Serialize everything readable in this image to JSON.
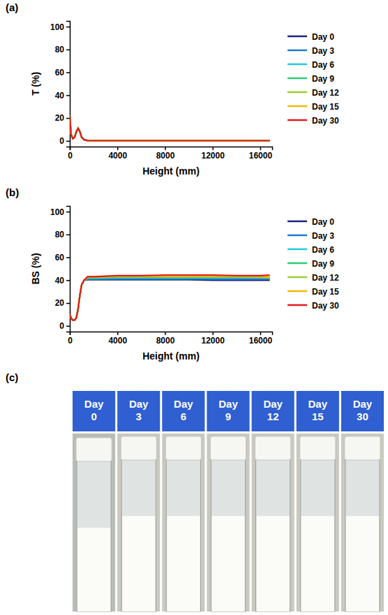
{
  "chart_data": [
    {
      "type": "line",
      "panel": "(a)",
      "x_label": "Height (mm)",
      "y_label": "T (%)",
      "x": [
        0,
        100,
        250,
        400,
        550,
        700,
        850,
        1000,
        1200,
        1500,
        2000,
        4000,
        6000,
        8000,
        10000,
        12000,
        14000,
        16000,
        16800
      ],
      "xlim": [
        0,
        17000
      ],
      "xticks": [
        0,
        4000,
        8000,
        12000,
        16000
      ],
      "ylim": [
        -5,
        105
      ],
      "yticks": [
        0,
        20,
        40,
        60,
        80,
        100
      ],
      "legend": "right",
      "grid": false,
      "series": [
        {
          "name": "Day 0",
          "color": "#1a237e",
          "values": [
            22,
            6,
            2,
            3,
            8,
            11,
            8,
            3,
            1,
            0.3,
            0.2,
            0.2,
            0.2,
            0.2,
            0.2,
            0.2,
            0.2,
            0.2,
            0.2
          ]
        },
        {
          "name": "Day 3",
          "color": "#1f78d1",
          "values": [
            22,
            6,
            2,
            3,
            8,
            11,
            8,
            3,
            1,
            0.3,
            0.2,
            0.2,
            0.2,
            0.2,
            0.2,
            0.2,
            0.2,
            0.2,
            0.2
          ]
        },
        {
          "name": "Day 6",
          "color": "#26c6da",
          "values": [
            22,
            6,
            2,
            3,
            8,
            11,
            8,
            3,
            1,
            0.3,
            0.2,
            0.2,
            0.2,
            0.2,
            0.2,
            0.2,
            0.2,
            0.2,
            0.2
          ]
        },
        {
          "name": "Day 9",
          "color": "#2ecc71",
          "values": [
            22,
            6,
            2,
            3,
            8,
            11,
            8,
            3,
            1,
            0.3,
            0.2,
            0.2,
            0.2,
            0.2,
            0.2,
            0.2,
            0.2,
            0.2,
            0.2
          ]
        },
        {
          "name": "Day 12",
          "color": "#9acd32",
          "values": [
            22,
            6,
            2,
            3,
            8,
            11,
            8,
            3,
            1,
            0.3,
            0.2,
            0.2,
            0.2,
            0.2,
            0.2,
            0.2,
            0.2,
            0.2,
            0.2
          ]
        },
        {
          "name": "Day 15",
          "color": "#f5b50a",
          "values": [
            22,
            6,
            2,
            3,
            8,
            11,
            8,
            3,
            1,
            0.3,
            0.2,
            0.2,
            0.2,
            0.2,
            0.2,
            0.2,
            0.2,
            0.2,
            0.2
          ]
        },
        {
          "name": "Day 30",
          "color": "#e31a1c",
          "values": [
            22,
            6,
            2,
            3,
            8,
            11,
            8,
            3,
            1,
            0.3,
            0.2,
            0.2,
            0.2,
            0.2,
            0.2,
            0.2,
            0.2,
            0.2,
            0.2
          ]
        }
      ]
    },
    {
      "type": "line",
      "panel": "(b)",
      "x_label": "Height (mm)",
      "y_label": "BS (%)",
      "x": [
        0,
        100,
        250,
        400,
        550,
        700,
        850,
        1000,
        1200,
        1500,
        2000,
        4000,
        6000,
        8000,
        10000,
        12000,
        14000,
        16000,
        16800
      ],
      "xlim": [
        0,
        17000
      ],
      "xticks": [
        0,
        4000,
        8000,
        12000,
        16000
      ],
      "ylim": [
        -5,
        105
      ],
      "yticks": [
        0,
        20,
        40,
        60,
        80,
        100
      ],
      "legend": "right",
      "grid": false,
      "series": [
        {
          "name": "Day 0",
          "color": "#1a237e",
          "values": [
            10,
            7,
            5,
            5,
            7,
            15,
            27,
            36,
            40,
            40.5,
            40.5,
            40.5,
            40.5,
            40.5,
            40.5,
            40,
            40,
            40,
            40
          ]
        },
        {
          "name": "Day 3",
          "color": "#1f78d1",
          "values": [
            10,
            7,
            5,
            5,
            7,
            15,
            27,
            36,
            40,
            41,
            41,
            41,
            41,
            41,
            41,
            41,
            41,
            41,
            41
          ]
        },
        {
          "name": "Day 6",
          "color": "#26c6da",
          "values": [
            10,
            7,
            5,
            5,
            7,
            15,
            27,
            36,
            40,
            41.5,
            41.5,
            42,
            42,
            42,
            42,
            42,
            42,
            42,
            42
          ]
        },
        {
          "name": "Day 9",
          "color": "#2ecc71",
          "values": [
            10,
            7,
            5,
            5,
            7,
            15,
            27,
            36,
            40,
            42,
            42,
            42.5,
            42.5,
            42.5,
            42.5,
            42.5,
            42.5,
            42.5,
            42.5
          ]
        },
        {
          "name": "Day 12",
          "color": "#9acd32",
          "values": [
            10,
            7,
            5,
            5,
            7,
            15,
            27,
            36,
            40,
            42.5,
            42.5,
            43,
            43,
            43,
            43,
            43,
            43,
            42.5,
            42
          ]
        },
        {
          "name": "Day 15",
          "color": "#f5b50a",
          "values": [
            10,
            7,
            5,
            5,
            7,
            15,
            27,
            36,
            40,
            43,
            43,
            43.5,
            43.5,
            43.5,
            43.5,
            43.5,
            43.5,
            43.5,
            43
          ]
        },
        {
          "name": "Day 30",
          "color": "#e31a1c",
          "values": [
            10,
            7,
            5,
            5,
            7,
            15,
            27,
            36,
            40,
            43,
            43,
            44,
            44,
            44.5,
            44.5,
            44.5,
            44,
            44,
            44.5
          ]
        }
      ]
    }
  ],
  "photo_panel": {
    "panel": "(c)",
    "days": [
      "Day 0",
      "Day 3",
      "Day 6",
      "Day 9",
      "Day 12",
      "Day 15",
      "Day 30"
    ]
  }
}
